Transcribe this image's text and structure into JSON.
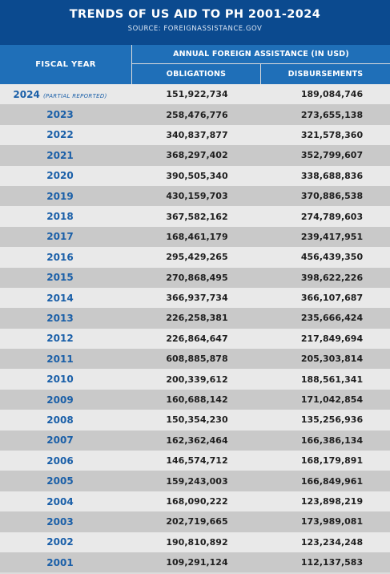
{
  "header": {
    "title": "TRENDS OF US AID TO PH 2001-2024",
    "source": "SOURCE: FOREIGNASSISTANCE.GOV",
    "col_year": "FISCAL YEAR",
    "col_group": "ANNUAL FOREIGN ASSISTANCE (IN USD)",
    "col_obligations": "OBLIGATIONS",
    "col_disbursements": "DISBURSEMENTS"
  },
  "chart_data": {
    "type": "table",
    "title": "TRENDS OF US AID TO PH 2001-2024",
    "columns": [
      "FISCAL YEAR",
      "OBLIGATIONS",
      "DISBURSEMENTS"
    ],
    "rows": [
      {
        "year": "2024",
        "note": "(PARTIAL REPORTED)",
        "obligations": "151,922,734",
        "disbursements": "189,084,746"
      },
      {
        "year": "2023",
        "note": "",
        "obligations": "258,476,776",
        "disbursements": "273,655,138"
      },
      {
        "year": "2022",
        "note": "",
        "obligations": "340,837,877",
        "disbursements": "321,578,360"
      },
      {
        "year": "2021",
        "note": "",
        "obligations": "368,297,402",
        "disbursements": "352,799,607"
      },
      {
        "year": "2020",
        "note": "",
        "obligations": "390,505,340",
        "disbursements": "338,688,836"
      },
      {
        "year": "2019",
        "note": "",
        "obligations": "430,159,703",
        "disbursements": "370,886,538"
      },
      {
        "year": "2018",
        "note": "",
        "obligations": "367,582,162",
        "disbursements": "274,789,603"
      },
      {
        "year": "2017",
        "note": "",
        "obligations": "168,461,179",
        "disbursements": "239,417,951"
      },
      {
        "year": "2016",
        "note": "",
        "obligations": "295,429,265",
        "disbursements": "456,439,350"
      },
      {
        "year": "2015",
        "note": "",
        "obligations": "270,868,495",
        "disbursements": "398,622,226"
      },
      {
        "year": "2014",
        "note": "",
        "obligations": "366,937,734",
        "disbursements": "366,107,687"
      },
      {
        "year": "2013",
        "note": "",
        "obligations": "226,258,381",
        "disbursements": "235,666,424"
      },
      {
        "year": "2012",
        "note": "",
        "obligations": "226,864,647",
        "disbursements": "217,849,694"
      },
      {
        "year": "2011",
        "note": "",
        "obligations": "608,885,878",
        "disbursements": "205,303,814"
      },
      {
        "year": "2010",
        "note": "",
        "obligations": "200,339,612",
        "disbursements": "188,561,341"
      },
      {
        "year": "2009",
        "note": "",
        "obligations": "160,688,142",
        "disbursements": "171,042,854"
      },
      {
        "year": "2008",
        "note": "",
        "obligations": "150,354,230",
        "disbursements": "135,256,936"
      },
      {
        "year": "2007",
        "note": "",
        "obligations": "162,362,464",
        "disbursements": "166,386,134"
      },
      {
        "year": "2006",
        "note": "",
        "obligations": "146,574,712",
        "disbursements": "168,179,891"
      },
      {
        "year": "2005",
        "note": "",
        "obligations": "159,243,003",
        "disbursements": "166,849,961"
      },
      {
        "year": "2004",
        "note": "",
        "obligations": "168,090,222",
        "disbursements": "123,898,219"
      },
      {
        "year": "2003",
        "note": "",
        "obligations": "202,719,665",
        "disbursements": "173,989,081"
      },
      {
        "year": "2002",
        "note": "",
        "obligations": "190,810,892",
        "disbursements": "123,234,248"
      },
      {
        "year": "2001",
        "note": "",
        "obligations": "109,291,124",
        "disbursements": "112,137,583"
      }
    ]
  },
  "colors": {
    "banner": "#0b4a8f",
    "header": "#1f6fb8",
    "year_text": "#1a5fa8",
    "row_light": "#e9e9e9",
    "row_dark": "#c9c9c9"
  }
}
